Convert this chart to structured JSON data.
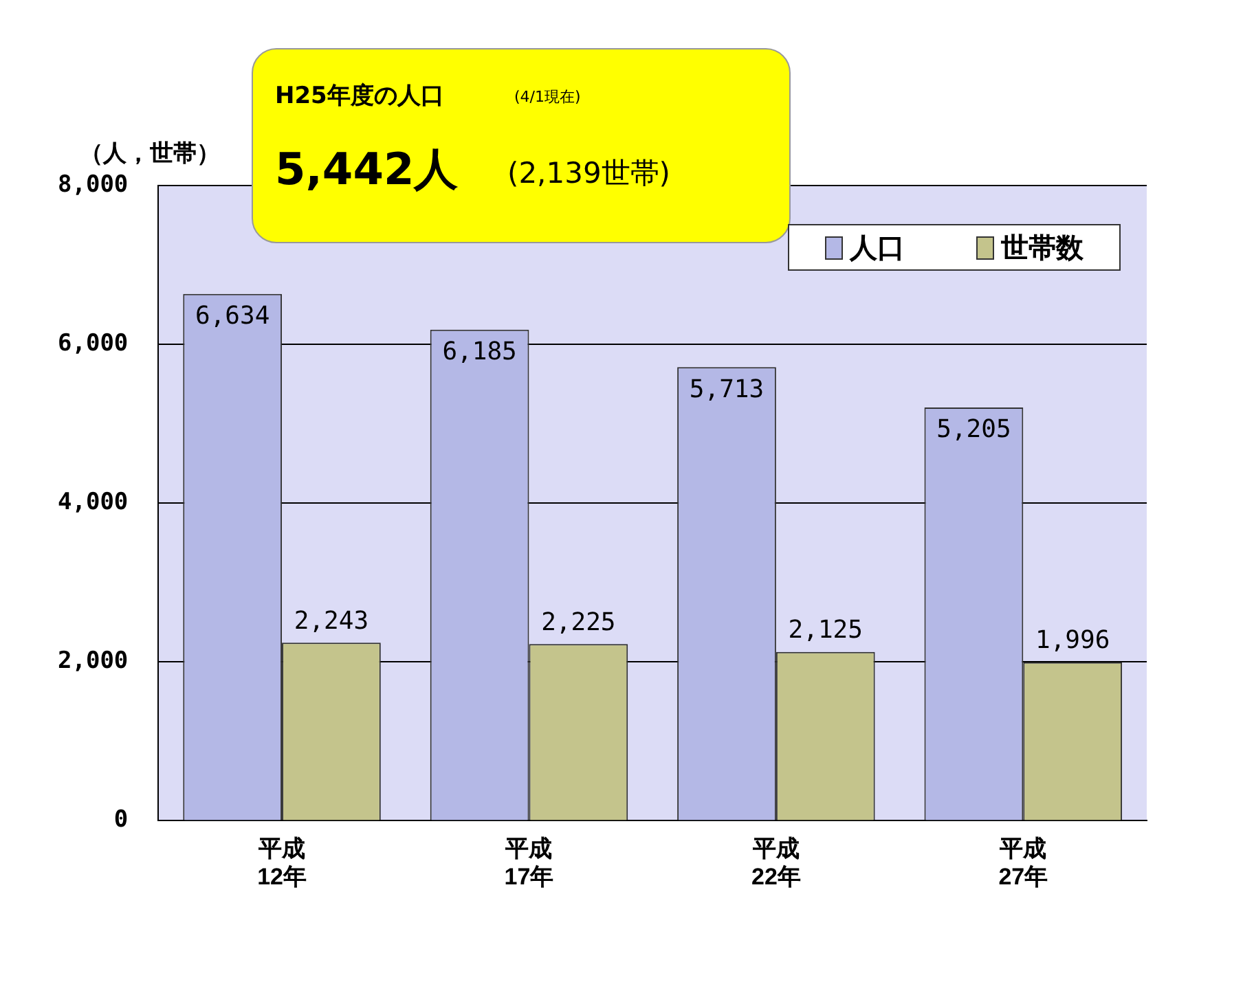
{
  "chart_data": {
    "type": "bar",
    "ylabel": "（人，世帯）",
    "categories": [
      "平成\n12年",
      "平成\n17年",
      "平成\n22年",
      "平成\n27年"
    ],
    "series": [
      {
        "name": "人口",
        "color": "#b4b8e6",
        "values": [
          6634,
          6185,
          5713,
          5205
        ],
        "value_labels": [
          "6,634",
          "6,185",
          "5,713",
          "5,205"
        ]
      },
      {
        "name": "世帯数",
        "color": "#c4c48c",
        "values": [
          2243,
          2225,
          2125,
          1996
        ],
        "value_labels": [
          "2,243",
          "2,225",
          "2,125",
          "1,996"
        ]
      }
    ],
    "ylim": [
      0,
      8000
    ],
    "yticks": [
      0,
      {
        "value": 2000,
        "label": "2,000"
      },
      {
        "value": 4000,
        "label": "4,000"
      },
      {
        "value": 6000,
        "label": "6,000"
      },
      {
        "value": 8000,
        "label": "8,000"
      }
    ],
    "grid": "y",
    "legend": "top right",
    "annotations": [
      "H25年度の人口",
      "(4/1現在)",
      "5,442人",
      "(2,139世帯)"
    ]
  }
}
